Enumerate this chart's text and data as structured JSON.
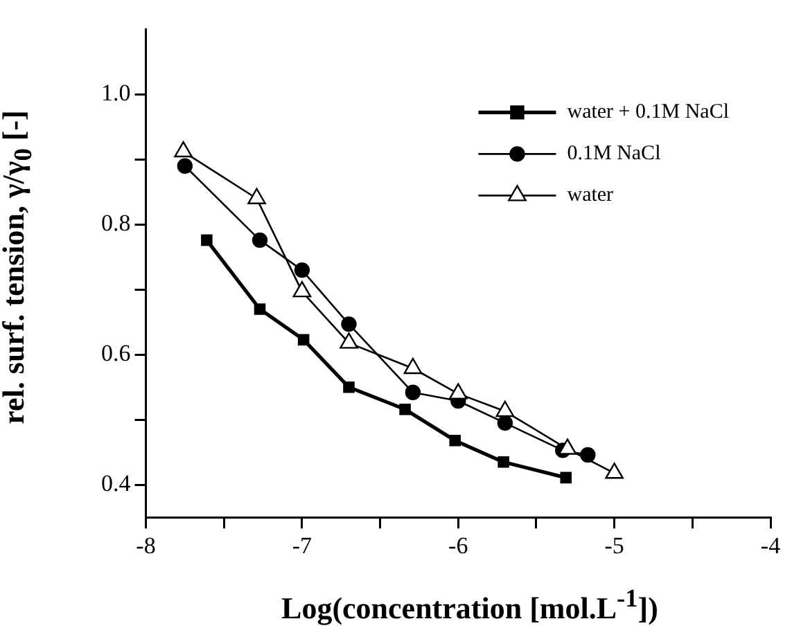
{
  "chart_data": {
    "type": "line",
    "xlabel": "Log(concentration [mol.L$^{-1}$])",
    "ylabel": "rel. surf. tension, γ/γ$_{0}$ [-]",
    "xlim": [
      -8,
      -4
    ],
    "xticks": [
      -8,
      {
        "value": -7.5,
        "label": null
      },
      -7,
      {
        "value": -6.5,
        "label": null
      },
      -6,
      {
        "value": -5.5,
        "label": null
      },
      -5,
      {
        "value": -4.5,
        "label": null
      },
      -4
    ],
    "ylim": [
      0.35,
      1.1
    ],
    "yticks": [
      {
        "value": 0.4,
        "label": "0.4"
      },
      {
        "value": 0.5,
        "label": null
      },
      {
        "value": 0.6,
        "label": "0.6"
      },
      {
        "value": 0.7,
        "label": null
      },
      {
        "value": 0.8,
        "label": "0.8"
      },
      {
        "value": 0.9,
        "label": null
      },
      {
        "value": 1.0,
        "label": "1.0"
      }
    ],
    "grid": false,
    "legend": "top right",
    "series": [
      {
        "name": "water + 0.1M NaCl",
        "color": "#000000",
        "marker": "square",
        "x": [
          -7.61,
          -7.27,
          -6.99,
          -6.7,
          -6.34,
          -6.02,
          -5.71,
          -5.31
        ],
        "values": [
          0.776,
          0.67,
          0.623,
          0.55,
          0.516,
          0.468,
          0.435,
          0.411
        ]
      },
      {
        "name": "0.1M NaCl",
        "color": "#000000",
        "marker": "circle",
        "x": [
          -7.75,
          -7.27,
          -7.0,
          -6.7,
          -6.29,
          -6.0,
          -5.7,
          -5.33,
          -5.17
        ],
        "values": [
          0.89,
          0.776,
          0.73,
          0.647,
          0.542,
          0.529,
          0.495,
          0.453,
          0.446
        ]
      },
      {
        "name": "water",
        "color": "#000000",
        "marker": "triangle",
        "x": [
          -7.76,
          -7.29,
          -7.0,
          -6.7,
          -6.29,
          -6.0,
          -5.7,
          -5.3,
          -5.0
        ],
        "values": [
          0.912,
          0.84,
          0.697,
          0.618,
          0.579,
          0.54,
          0.513,
          0.455,
          0.418
        ]
      }
    ]
  }
}
